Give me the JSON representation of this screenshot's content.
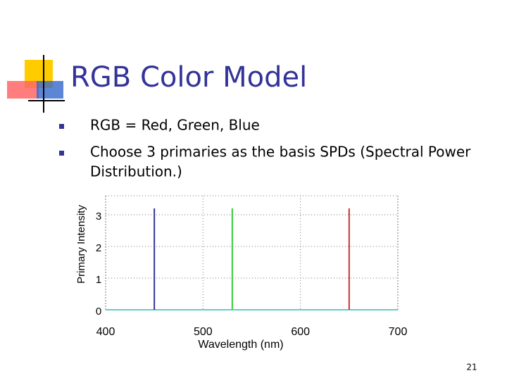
{
  "slide": {
    "title": "RGB Color Model",
    "bullets": [
      "RGB = Red, Green, Blue",
      [
        "Choose 3 primaries as the basis SPDs (Spectral Power",
        "Distribution.)"
      ]
    ],
    "page_number": "21"
  },
  "chart_data": {
    "type": "line",
    "xlabel": "Wavelength (nm)",
    "ylabel": "Primary Intensity",
    "xlim": [
      400,
      700
    ],
    "xticks": [
      400,
      500,
      600,
      700
    ],
    "ylim": [
      0,
      3.6
    ],
    "yticks": [
      0,
      1,
      2,
      3
    ],
    "grid": true,
    "baseline_color": "#66cccc",
    "series": [
      {
        "color": "#333399",
        "x": [
          450
        ],
        "values": [
          3.2
        ]
      },
      {
        "color": "#33cc33",
        "x": [
          530
        ],
        "values": [
          3.2
        ]
      },
      {
        "color": "#cc3333",
        "x": [
          650
        ],
        "values": [
          3.2
        ]
      }
    ]
  }
}
